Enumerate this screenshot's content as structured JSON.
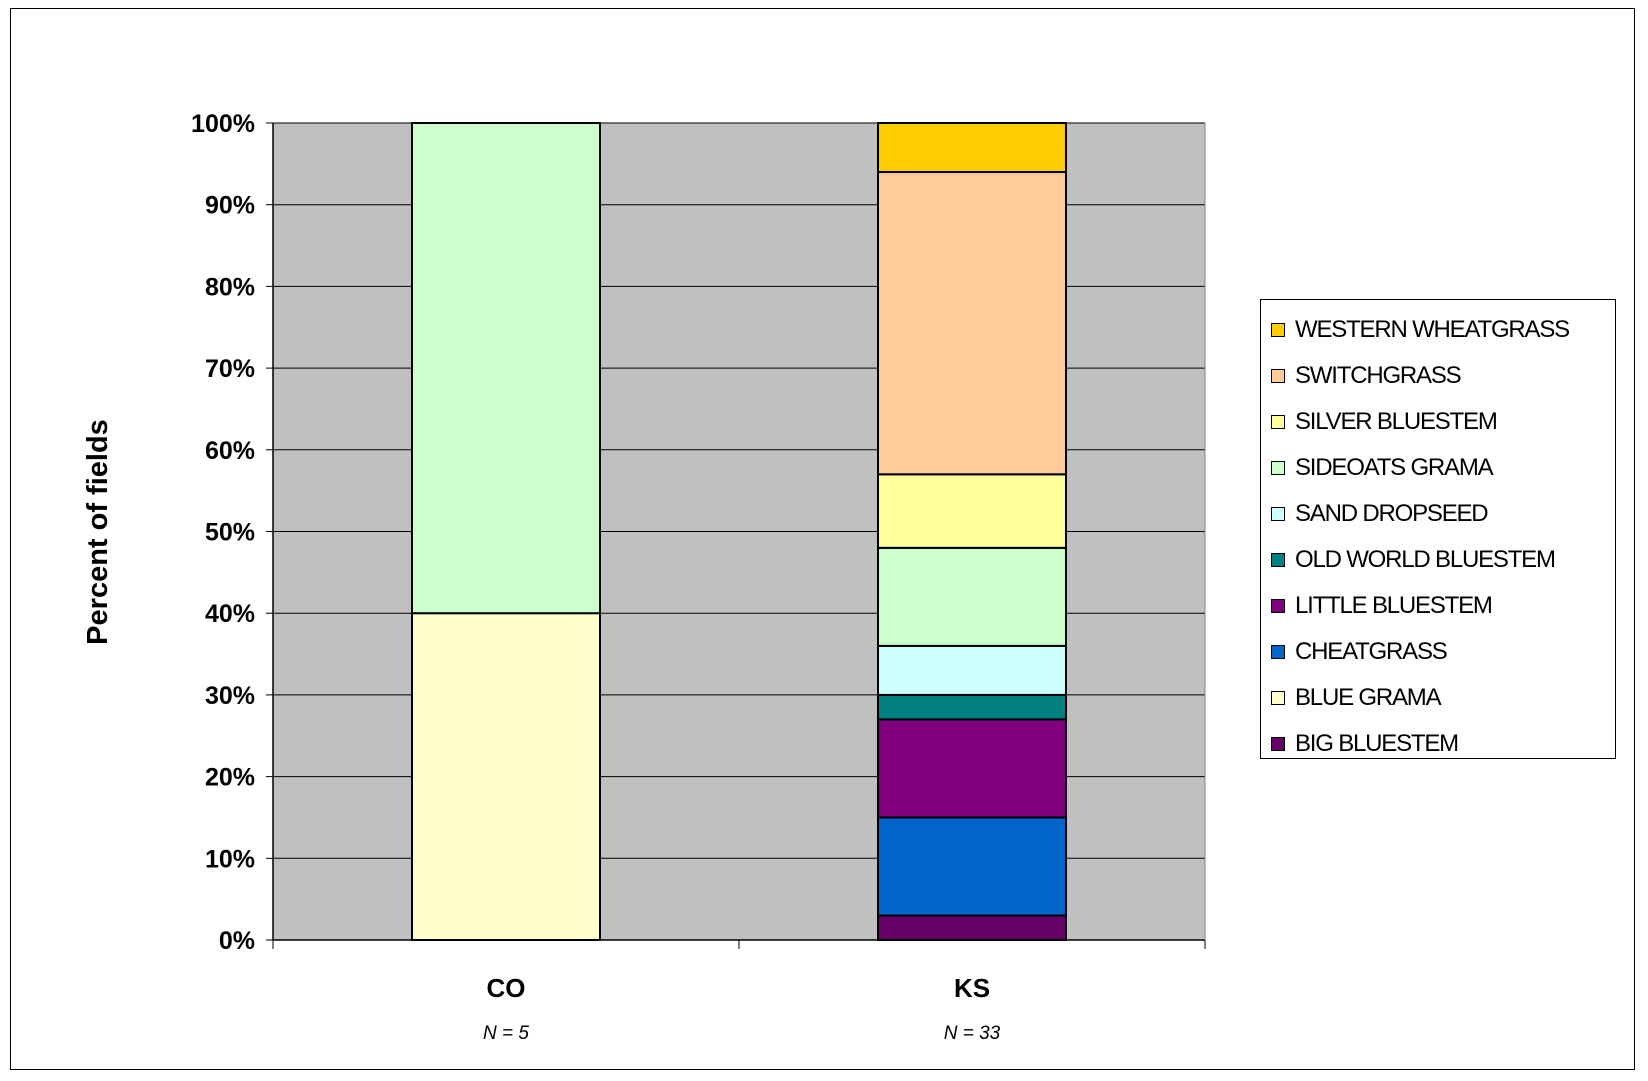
{
  "chart_data": {
    "type": "bar",
    "stacked": true,
    "percent_stacked": true,
    "categories": [
      "CO",
      "KS"
    ],
    "category_notes": [
      "N = 5",
      "N = 33"
    ],
    "ylabel": "Percent of fields",
    "xlabel": "",
    "title": "",
    "ylim": [
      0,
      100
    ],
    "yticks": [
      "0%",
      "10%",
      "20%",
      "30%",
      "40%",
      "50%",
      "60%",
      "70%",
      "80%",
      "90%",
      "100%"
    ],
    "grid": true,
    "legend_position": "right",
    "plot_background": "#c0c0c0",
    "series": [
      {
        "name": "BIG BLUESTEM",
        "color": "#660066",
        "values": [
          0,
          3
        ]
      },
      {
        "name": "BLUE GRAMA",
        "color": "#ffffcc",
        "values": [
          40,
          0
        ]
      },
      {
        "name": "CHEATGRASS",
        "color": "#0066cc",
        "values": [
          0,
          12
        ]
      },
      {
        "name": "LITTLE BLUESTEM",
        "color": "#800080",
        "values": [
          0,
          12
        ]
      },
      {
        "name": "OLD WORLD BLUESTEM",
        "color": "#008080",
        "values": [
          0,
          3
        ]
      },
      {
        "name": "SAND DROPSEED",
        "color": "#ccffff",
        "values": [
          0,
          6
        ]
      },
      {
        "name": "SIDEOATS GRAMA",
        "color": "#ccffcc",
        "values": [
          60,
          12
        ]
      },
      {
        "name": "SILVER BLUESTEM",
        "color": "#ffff99",
        "values": [
          0,
          9
        ]
      },
      {
        "name": "SWITCHGRASS",
        "color": "#ffcc99",
        "values": [
          0,
          37
        ]
      },
      {
        "name": "WESTERN WHEATGRASS",
        "color": "#ffcc00",
        "values": [
          0,
          6
        ]
      }
    ]
  }
}
